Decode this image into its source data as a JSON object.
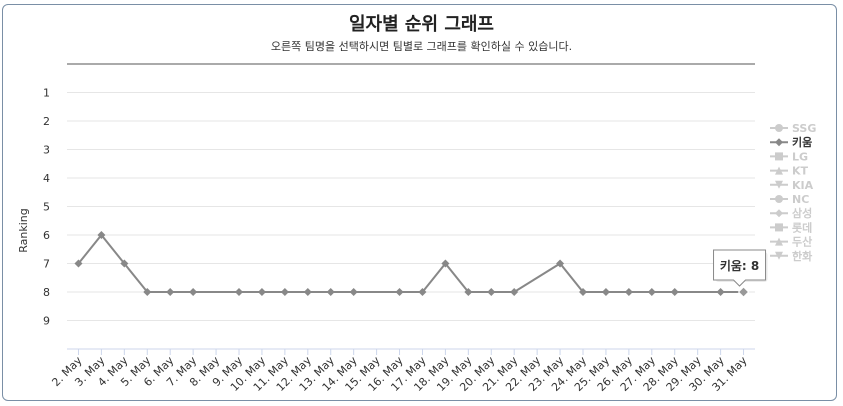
{
  "header": {
    "title": "일자별 순위 그래프",
    "subtitle": "오른쪽 팀명을 선택하시면 팀별로 그래프를 확인하실 수 있습니다."
  },
  "tooltip": {
    "label": "키움: 8"
  },
  "colors": {
    "active": "#888888",
    "inactive": "#cccccc",
    "active_text": "#333333",
    "grid": "#e6e6e6"
  },
  "legend": [
    {
      "name": "SSG",
      "marker": "circle",
      "active": false
    },
    {
      "name": "키움",
      "marker": "diamond",
      "active": true
    },
    {
      "name": "LG",
      "marker": "square",
      "active": false
    },
    {
      "name": "KT",
      "marker": "triangle",
      "active": false
    },
    {
      "name": "KIA",
      "marker": "triangle-down",
      "active": false
    },
    {
      "name": "NC",
      "marker": "circle",
      "active": false
    },
    {
      "name": "삼성",
      "marker": "diamond",
      "active": false
    },
    {
      "name": "롯데",
      "marker": "square",
      "active": false
    },
    {
      "name": "두산",
      "marker": "triangle",
      "active": false
    },
    {
      "name": "한화",
      "marker": "triangle-down",
      "active": false
    }
  ],
  "chart_data": {
    "type": "line",
    "ylabel": "Ranking",
    "y_ticks": [
      1,
      2,
      3,
      4,
      5,
      6,
      7,
      8,
      9
    ],
    "ylim": [
      0,
      10
    ],
    "y_reversed": true,
    "grid": true,
    "legend_position": "right",
    "categories": [
      "2. May",
      "3. May",
      "4. May",
      "5. May",
      "6. May",
      "7. May",
      "8. May",
      "9. May",
      "10. May",
      "11. May",
      "12. May",
      "13. May",
      "14. May",
      "15. May",
      "16. May",
      "17. May",
      "18. May",
      "19. May",
      "20. May",
      "21. May",
      "22. May",
      "23. May",
      "24. May",
      "25. May",
      "26. May",
      "27. May",
      "28. May",
      "29. May",
      "30. May",
      "31. May"
    ],
    "series": [
      {
        "name": "키움",
        "values": [
          7,
          6,
          7,
          8,
          8,
          8,
          null,
          8,
          8,
          8,
          8,
          8,
          8,
          null,
          8,
          8,
          7,
          8,
          8,
          8,
          null,
          7,
          8,
          8,
          8,
          8,
          8,
          null,
          8,
          8
        ]
      }
    ]
  }
}
